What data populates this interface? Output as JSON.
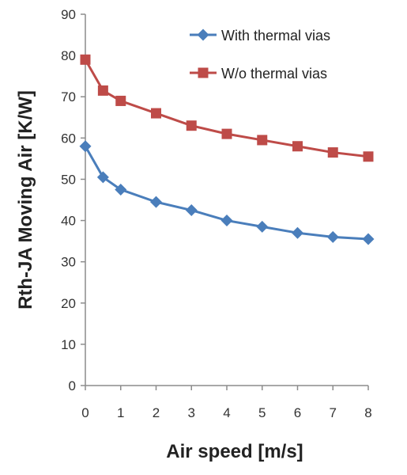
{
  "chart_data": {
    "type": "line",
    "xlabel": "Air speed [m/s]",
    "ylabel": "Rth-JA Moving Air [K/W]",
    "xlim": [
      0,
      8
    ],
    "ylim": [
      0,
      90
    ],
    "xticks": [
      0,
      1,
      2,
      3,
      4,
      5,
      6,
      7,
      8
    ],
    "yticks": [
      0,
      10,
      20,
      30,
      40,
      50,
      60,
      70,
      80,
      90
    ],
    "grid": false,
    "legend_position": "top-right",
    "x": [
      0,
      0.5,
      1,
      2,
      3,
      4,
      5,
      6,
      7,
      8
    ],
    "series": [
      {
        "name": "With thermal vias",
        "color": "#4a7ebb",
        "marker": "diamond",
        "values": [
          58,
          50.5,
          47.5,
          44.5,
          42.5,
          40,
          38.5,
          37,
          36,
          35.5
        ]
      },
      {
        "name": "W/o thermal vias",
        "color": "#be4b48",
        "marker": "square",
        "values": [
          79,
          71.5,
          69,
          66,
          63,
          61,
          59.5,
          58,
          56.5,
          55.5
        ]
      }
    ]
  }
}
